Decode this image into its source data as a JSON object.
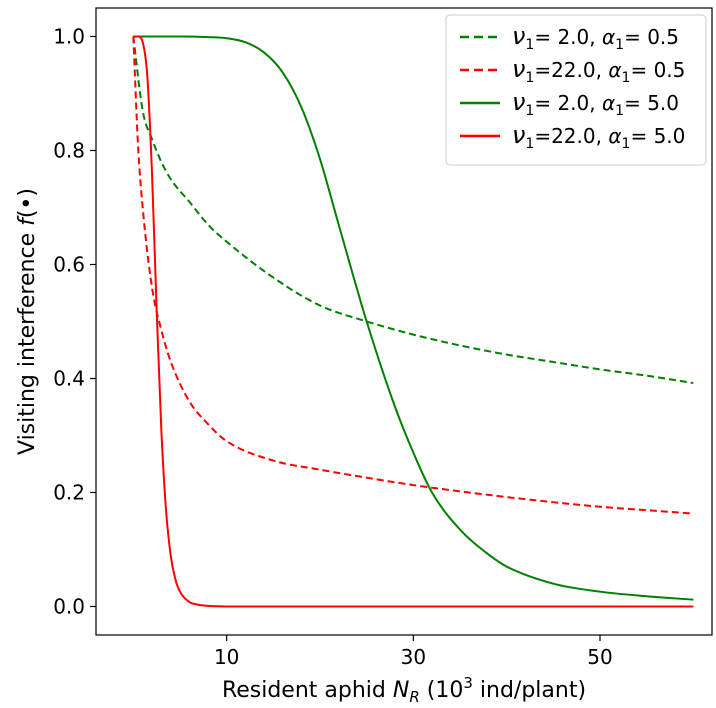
{
  "chart_data": {
    "type": "line",
    "xlabel": "Resident aphid N_R (10^3 ind/plant)",
    "ylabel": "Visiting interference f(•)",
    "xlim": [
      -4.0,
      62.0
    ],
    "ylim": [
      -0.05,
      1.05
    ],
    "xticks": [
      10,
      30,
      50
    ],
    "yticks": [
      0.0,
      0.2,
      0.4,
      0.6,
      0.8,
      1.0
    ],
    "xtick_labels": [
      "10",
      "30",
      "50"
    ],
    "ytick_labels": [
      "0.0",
      "0.2",
      "0.4",
      "0.6",
      "0.8",
      "1.0"
    ],
    "legend_position": "top-right",
    "series": [
      {
        "name": "ν1 = 2.0, α1 = 0.5",
        "color": "#008000",
        "style": "dashed",
        "x": [
          0,
          1,
          2,
          3,
          4,
          6,
          8,
          10,
          15,
          20,
          25,
          30,
          35,
          40,
          45,
          50,
          55,
          60
        ],
        "y": [
          1.0,
          0.87,
          0.82,
          0.78,
          0.75,
          0.71,
          0.67,
          0.64,
          0.577,
          0.528,
          0.5,
          0.477,
          0.458,
          0.442,
          0.429,
          0.416,
          0.405,
          0.392
        ]
      },
      {
        "name": "ν1 = 22.0, α1 = 0.5",
        "color": "#ff0000",
        "style": "dashed",
        "x": [
          0,
          0.5,
          1,
          2,
          3,
          4,
          6,
          8,
          10,
          15,
          20,
          25,
          30,
          35,
          40,
          45,
          50,
          55,
          60
        ],
        "y": [
          1.0,
          0.81,
          0.7,
          0.56,
          0.485,
          0.43,
          0.36,
          0.32,
          0.29,
          0.256,
          0.24,
          0.226,
          0.213,
          0.202,
          0.192,
          0.183,
          0.175,
          0.169,
          0.163
        ]
      },
      {
        "name": "ν1 = 2.0, α1 = 5.0",
        "color": "#008000",
        "style": "solid",
        "x": [
          0,
          2,
          5,
          8,
          10,
          12,
          14,
          16,
          18,
          20,
          22,
          25,
          28,
          30,
          32,
          35,
          38,
          40,
          45,
          50,
          55,
          60
        ],
        "y": [
          1.0,
          1.0,
          1.0,
          0.999,
          0.997,
          0.99,
          0.972,
          0.937,
          0.876,
          0.785,
          0.67,
          0.5,
          0.352,
          0.27,
          0.2,
          0.135,
          0.092,
          0.07,
          0.04,
          0.026,
          0.018,
          0.012
        ]
      },
      {
        "name": "ν1 = 22.0, α1 = 5.0",
        "color": "#ff0000",
        "style": "solid",
        "x": [
          0,
          0.5,
          1,
          1.5,
          2,
          2.5,
          3,
          3.5,
          4,
          4.5,
          5,
          6,
          7,
          8,
          10,
          20,
          30,
          40,
          50,
          60
        ],
        "y": [
          1.0,
          1.0,
          0.99,
          0.93,
          0.76,
          0.52,
          0.31,
          0.17,
          0.09,
          0.048,
          0.026,
          0.008,
          0.003,
          0.001,
          0.0,
          0.0,
          0.0,
          0.0,
          0.0,
          0.0
        ]
      }
    ]
  }
}
